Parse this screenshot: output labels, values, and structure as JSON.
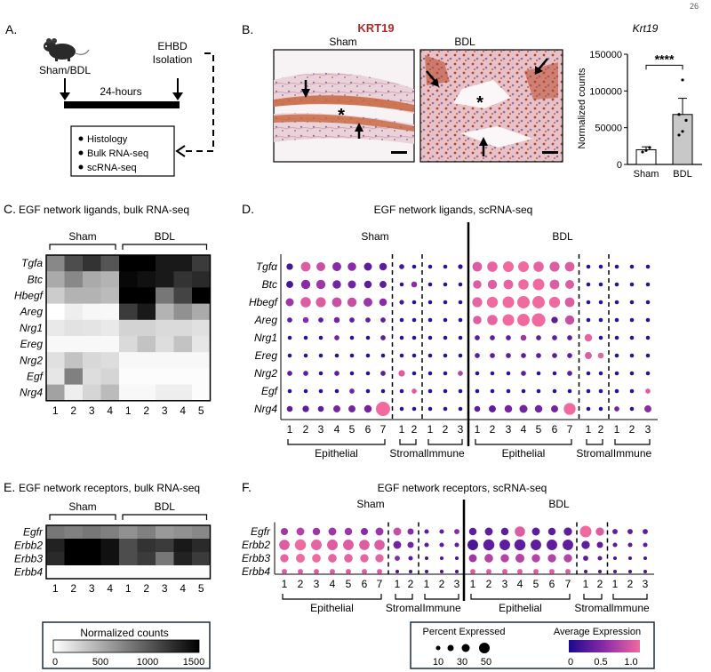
{
  "page_number": "26",
  "panelA": {
    "label": "A.",
    "mouse_label": "Sham/BDL",
    "isolation_line1": "EHBD",
    "isolation_line2": "Isolation",
    "duration": "24-hours",
    "outputs": [
      "Histology",
      "Bulk RNA-seq",
      "scRNA-seq"
    ]
  },
  "panelB": {
    "label": "B.",
    "title": "KRT19",
    "title_color": "#b22a2a",
    "image_labels": [
      "Sham",
      "BDL"
    ],
    "bar_title": "Krt19",
    "ylabel": "Normalized counts",
    "significance": "****"
  },
  "panelC": {
    "label": "C.",
    "title": "EGF network ligands, bulk RNA-seq",
    "groups": [
      "Sham",
      "BDL"
    ],
    "genes": [
      "Tgfa",
      "Btc",
      "Hbegf",
      "Areg",
      "Nrg1",
      "Ereg",
      "Nrg2",
      "Egf",
      "Nrg4"
    ],
    "columns": [
      "1",
      "2",
      "3",
      "4",
      "1",
      "2",
      "3",
      "4",
      "5"
    ]
  },
  "panelD": {
    "label": "D.",
    "title": "EGF network ligands, scRNA-seq",
    "conditions": [
      "Sham",
      "BDL"
    ],
    "genes": [
      "Tgfα",
      "Btc",
      "Hbegf",
      "Areg",
      "Nrg1",
      "Ereg",
      "Nrg2",
      "Egf",
      "Nrg4"
    ],
    "cell_groups": [
      "Epithelial",
      "Stromal",
      "Immune"
    ]
  },
  "panelE": {
    "label": "E.",
    "title": "EGF network receptors, bulk RNA-seq",
    "groups": [
      "Sham",
      "BDL"
    ],
    "genes": [
      "Egfr",
      "Erbb2",
      "Erbb3",
      "Erbb4"
    ],
    "columns": [
      "1",
      "2",
      "3",
      "4",
      "1",
      "2",
      "3",
      "4",
      "5"
    ]
  },
  "panelF": {
    "label": "F.",
    "title": "EGF network receptors, scRNA-seq",
    "conditions": [
      "Sham",
      "BDL"
    ],
    "genes": [
      "Egfr",
      "Erbb2",
      "Erbb3",
      "Erbb4"
    ],
    "cell_groups": [
      "Epithelial",
      "Stromal",
      "Immune"
    ]
  },
  "legend_heat": {
    "title": "Normalized counts",
    "ticks": [
      "0",
      "500",
      "1000",
      "1500"
    ]
  },
  "legend_dots": {
    "size_title": "Percent Expressed",
    "size_ticks": [
      "10",
      "30",
      "50"
    ],
    "color_title": "Average Expression",
    "color_ticks": [
      "0",
      "0.5",
      "1.0"
    ],
    "color_low": "#1a0a8c",
    "color_mid": "#8a2aa8",
    "color_high": "#f06aa0"
  },
  "chart_data": [
    {
      "type": "bar",
      "title": "Krt19",
      "categories": [
        "Sham",
        "BDL"
      ],
      "values": [
        20000,
        68000
      ],
      "error": [
        4000,
        22000
      ],
      "points": [
        [
          17000,
          19000,
          23000
        ],
        [
          40000,
          45000,
          60000,
          68000,
          115000
        ]
      ],
      "ylabel": "Normalized counts",
      "ylim": [
        0,
        150000
      ],
      "yticks": [
        "0",
        "50000",
        "100000",
        "150000"
      ]
    },
    {
      "type": "heatmap",
      "title": "EGF network ligands, bulk RNA-seq",
      "rows": [
        "Tgfa",
        "Btc",
        "Hbegf",
        "Areg",
        "Nrg1",
        "Ereg",
        "Nrg2",
        "Egf",
        "Nrg4"
      ],
      "columns": [
        "Sham 1",
        "Sham 2",
        "Sham 3",
        "Sham 4",
        "BDL 1",
        "BDL 2",
        "BDL 3",
        "BDL 4",
        "BDL 5"
      ],
      "values": [
        [
          700,
          1050,
          1200,
          1000,
          1500,
          1500,
          1350,
          1350,
          1150
        ],
        [
          500,
          700,
          500,
          450,
          1450,
          1400,
          1350,
          1200,
          1250
        ],
        [
          300,
          450,
          450,
          400,
          1500,
          1500,
          800,
          1100,
          1550
        ],
        [
          0,
          100,
          50,
          40,
          1150,
          1350,
          450,
          650,
          500
        ],
        [
          130,
          170,
          160,
          130,
          260,
          260,
          220,
          220,
          180
        ],
        [
          40,
          40,
          40,
          40,
          220,
          350,
          200,
          350,
          150
        ],
        [
          180,
          350,
          230,
          200,
          40,
          40,
          40,
          40,
          40
        ],
        [
          150,
          750,
          200,
          250,
          20,
          20,
          20,
          20,
          20
        ],
        [
          550,
          100,
          250,
          400,
          40,
          40,
          100,
          100,
          20
        ]
      ],
      "colorscale": {
        "min": 0,
        "max": 1500,
        "low": "#ffffff",
        "high": "#000000"
      }
    },
    {
      "type": "heatmap",
      "title": "EGF network receptors, bulk RNA-seq",
      "rows": [
        "Egfr",
        "Erbb2",
        "Erbb3",
        "Erbb4"
      ],
      "columns": [
        "Sham 1",
        "Sham 2",
        "Sham 3",
        "Sham 4",
        "BDL 1",
        "BDL 2",
        "BDL 3",
        "BDL 4",
        "BDL 5"
      ],
      "values": [
        [
          800,
          750,
          800,
          750,
          650,
          750,
          600,
          650,
          700
        ],
        [
          1300,
          1500,
          1500,
          1400,
          1050,
          1200,
          1150,
          1350,
          1250
        ],
        [
          1250,
          1500,
          1500,
          1400,
          1050,
          1150,
          800,
          1300,
          1150
        ],
        [
          20,
          20,
          20,
          20,
          20,
          20,
          20,
          20,
          20
        ]
      ],
      "colorscale": {
        "min": 0,
        "max": 1500,
        "low": "#ffffff",
        "high": "#000000"
      }
    },
    {
      "type": "scatter",
      "subtype": "dotplot",
      "title": "EGF network ligands, scRNA-seq",
      "genes": [
        "Tgfα",
        "Btc",
        "Hbegf",
        "Areg",
        "Nrg1",
        "Ereg",
        "Nrg2",
        "Egf",
        "Nrg4"
      ],
      "clusters": [
        "E1",
        "E2",
        "E3",
        "E4",
        "E5",
        "E6",
        "E7",
        "S1",
        "S2",
        "I1",
        "I2",
        "I3"
      ],
      "size_note": "percent expressed",
      "color_note": "average expression 0-1",
      "sham": {
        "pct": [
          [
            8,
            22,
            18,
            18,
            16,
            14,
            12,
            4,
            2,
            2,
            2,
            3
          ],
          [
            10,
            20,
            20,
            16,
            14,
            12,
            10,
            2,
            6,
            2,
            2,
            2
          ],
          [
            14,
            26,
            24,
            22,
            20,
            18,
            12,
            3,
            2,
            2,
            2,
            2
          ],
          [
            4,
            6,
            4,
            6,
            4,
            4,
            4,
            2,
            2,
            2,
            2,
            2
          ],
          [
            2,
            2,
            2,
            4,
            2,
            2,
            4,
            2,
            2,
            2,
            2,
            2
          ],
          [
            2,
            2,
            2,
            2,
            2,
            2,
            2,
            2,
            2,
            2,
            2,
            2
          ],
          [
            4,
            4,
            2,
            4,
            2,
            2,
            4,
            8,
            2,
            2,
            2,
            4
          ],
          [
            2,
            2,
            2,
            2,
            4,
            2,
            2,
            2,
            4,
            2,
            2,
            2
          ],
          [
            6,
            8,
            6,
            10,
            10,
            12,
            55,
            2,
            2,
            2,
            2,
            2
          ]
        ],
        "avg": [
          [
            0.2,
            0.9,
            0.8,
            0.5,
            0.5,
            0.3,
            0.3,
            0.2,
            0.1,
            0.1,
            0.1,
            0.1
          ],
          [
            0.2,
            0.5,
            0.6,
            0.4,
            0.4,
            0.3,
            0.3,
            0.1,
            0.5,
            0.1,
            0.1,
            0.1
          ],
          [
            0.6,
            0.9,
            0.9,
            0.8,
            0.8,
            0.6,
            0.5,
            0.2,
            0.1,
            0.1,
            0.1,
            0.1
          ],
          [
            0.3,
            0.5,
            0.3,
            0.4,
            0.3,
            0.3,
            0.3,
            0.1,
            0.1,
            0.1,
            0.1,
            0.1
          ],
          [
            0.1,
            0.1,
            0.1,
            0.4,
            0.1,
            0.1,
            0.3,
            0.1,
            0.1,
            0.1,
            0.1,
            0.1
          ],
          [
            0.1,
            0.1,
            0.1,
            0.1,
            0.1,
            0.1,
            0.1,
            0.1,
            0.1,
            0.1,
            0.1,
            0.1
          ],
          [
            0.3,
            0.3,
            0.1,
            0.3,
            0.1,
            0.1,
            0.3,
            0.9,
            0.1,
            0.1,
            0.1,
            0.7
          ],
          [
            0.1,
            0.1,
            0.1,
            0.1,
            0.4,
            0.1,
            0.1,
            0.1,
            0.9,
            0.1,
            0.1,
            0.1
          ],
          [
            0.3,
            0.3,
            0.3,
            0.4,
            0.4,
            0.4,
            1.0,
            0.1,
            0.1,
            0.1,
            0.1,
            0.1
          ]
        ]
      },
      "bdl": {
        "pct": [
          [
            22,
            26,
            28,
            28,
            26,
            24,
            22,
            2,
            2,
            2,
            2,
            2
          ],
          [
            16,
            20,
            22,
            26,
            34,
            22,
            18,
            2,
            2,
            2,
            2,
            2
          ],
          [
            24,
            30,
            34,
            40,
            40,
            30,
            22,
            2,
            2,
            2,
            2,
            2
          ],
          [
            16,
            26,
            34,
            40,
            48,
            8,
            20,
            2,
            2,
            2,
            2,
            2
          ],
          [
            4,
            4,
            4,
            6,
            4,
            4,
            4,
            12,
            2,
            2,
            2,
            2
          ],
          [
            4,
            4,
            4,
            4,
            4,
            4,
            4,
            10,
            6,
            2,
            2,
            2
          ],
          [
            2,
            2,
            2,
            4,
            2,
            2,
            4,
            2,
            2,
            2,
            2,
            2
          ],
          [
            2,
            2,
            2,
            2,
            2,
            2,
            2,
            2,
            2,
            2,
            2,
            4
          ],
          [
            6,
            10,
            12,
            14,
            12,
            10,
            36,
            2,
            2,
            4,
            2,
            10
          ]
        ],
        "avg": [
          [
            0.9,
            0.95,
            1.0,
            1.0,
            0.95,
            0.9,
            0.9,
            0.1,
            0.1,
            0.1,
            0.1,
            0.1
          ],
          [
            0.9,
            0.9,
            0.95,
            1.0,
            1.0,
            0.9,
            0.9,
            0.1,
            0.1,
            0.1,
            0.1,
            0.1
          ],
          [
            0.95,
            1.0,
            1.0,
            1.0,
            1.0,
            1.0,
            0.9,
            0.1,
            0.1,
            0.1,
            0.1,
            0.1
          ],
          [
            0.9,
            0.95,
            1.0,
            1.0,
            1.0,
            0.3,
            0.8,
            0.1,
            0.1,
            0.1,
            0.1,
            0.1
          ],
          [
            0.3,
            0.3,
            0.3,
            0.6,
            0.3,
            0.3,
            0.3,
            0.95,
            0.1,
            0.1,
            0.1,
            0.1
          ],
          [
            0.3,
            0.3,
            0.3,
            0.3,
            0.3,
            0.3,
            0.3,
            0.9,
            0.95,
            0.1,
            0.1,
            0.1
          ],
          [
            0.1,
            0.1,
            0.1,
            0.3,
            0.1,
            0.1,
            0.3,
            0.1,
            0.1,
            0.1,
            0.1,
            0.1
          ],
          [
            0.1,
            0.1,
            0.1,
            0.1,
            0.1,
            0.1,
            0.1,
            0.1,
            0.1,
            0.1,
            0.1,
            0.9
          ],
          [
            0.3,
            0.3,
            0.4,
            0.4,
            0.4,
            0.4,
            1.0,
            0.1,
            0.1,
            0.4,
            0.1,
            0.5
          ]
        ]
      }
    },
    {
      "type": "scatter",
      "subtype": "dotplot",
      "title": "EGF network receptors, scRNA-seq",
      "genes": [
        "Egfr",
        "Erbb2",
        "Erbb3",
        "Erbb4"
      ],
      "clusters": [
        "E1",
        "E2",
        "E3",
        "E4",
        "E5",
        "E6",
        "E7",
        "S1",
        "S2",
        "I1",
        "I2",
        "I3"
      ],
      "sham": {
        "pct": [
          [
            14,
            18,
            16,
            18,
            16,
            14,
            18,
            18,
            10,
            4,
            4,
            6
          ],
          [
            34,
            40,
            36,
            36,
            36,
            34,
            34,
            18,
            10,
            4,
            4,
            4
          ],
          [
            20,
            24,
            22,
            22,
            22,
            20,
            20,
            6,
            4,
            2,
            2,
            2
          ],
          [
            6,
            6,
            6,
            6,
            6,
            6,
            6,
            2,
            2,
            2,
            2,
            2
          ]
        ],
        "avg": [
          [
            0.6,
            0.7,
            0.6,
            0.6,
            0.6,
            0.5,
            0.6,
            0.8,
            0.5,
            0.3,
            0.3,
            0.5
          ],
          [
            0.9,
            1.0,
            0.95,
            0.9,
            0.9,
            0.9,
            0.9,
            0.4,
            0.4,
            0.3,
            0.3,
            0.3
          ],
          [
            0.95,
            1.0,
            1.0,
            0.95,
            0.95,
            0.95,
            0.95,
            0.5,
            0.3,
            0.2,
            0.2,
            0.2
          ],
          [
            0.9,
            0.9,
            0.9,
            0.9,
            0.9,
            0.9,
            0.9,
            0.2,
            0.2,
            0.2,
            0.2,
            0.2
          ]
        ]
      },
      "bdl": {
        "pct": [
          [
            16,
            18,
            16,
            34,
            18,
            16,
            20,
            44,
            20,
            6,
            6,
            6
          ],
          [
            36,
            40,
            36,
            40,
            36,
            36,
            36,
            20,
            10,
            4,
            4,
            4
          ],
          [
            18,
            22,
            20,
            24,
            20,
            20,
            20,
            6,
            4,
            2,
            2,
            2
          ],
          [
            6,
            6,
            6,
            6,
            6,
            6,
            6,
            2,
            2,
            2,
            2,
            2
          ]
        ],
        "avg": [
          [
            0.3,
            0.3,
            0.3,
            0.9,
            0.3,
            0.3,
            0.3,
            1.0,
            0.9,
            0.3,
            0.3,
            0.3
          ],
          [
            0.2,
            0.3,
            0.3,
            0.3,
            0.3,
            0.3,
            0.3,
            0.3,
            0.3,
            0.3,
            0.3,
            0.3
          ],
          [
            0.6,
            0.7,
            0.7,
            0.7,
            0.7,
            0.7,
            0.7,
            0.3,
            0.3,
            0.2,
            0.2,
            0.2
          ],
          [
            0.9,
            0.9,
            0.9,
            0.9,
            0.9,
            0.9,
            0.9,
            0.2,
            0.2,
            0.2,
            0.2,
            0.2
          ]
        ]
      }
    }
  ]
}
